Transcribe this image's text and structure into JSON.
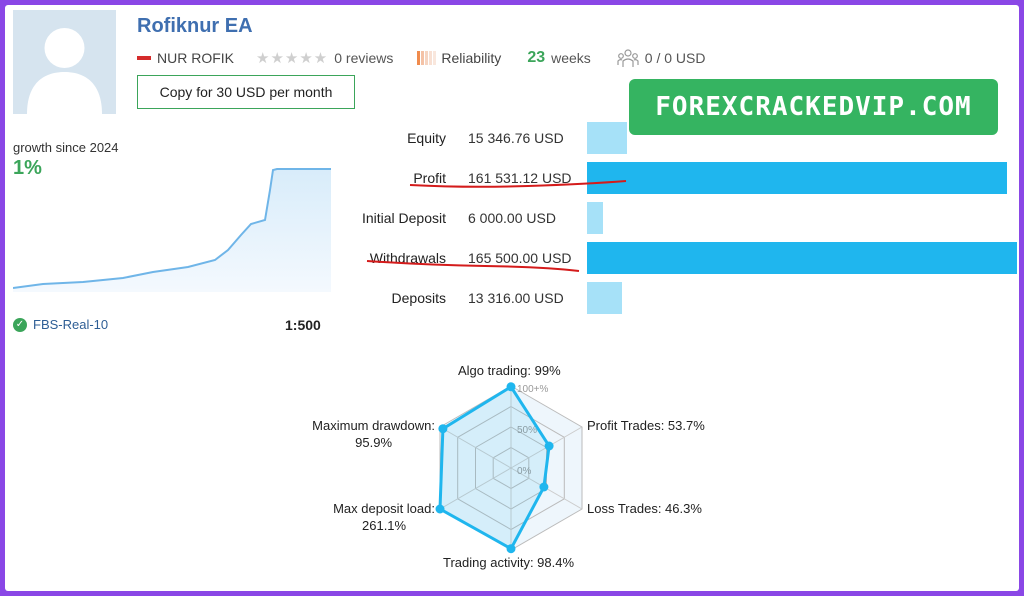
{
  "profile": {
    "name": "Rofiknur EA",
    "author": "NUR ROFIK",
    "reviews": "0 reviews",
    "reliability_label": "Reliability",
    "weeks_value": "23",
    "weeks_label": "weeks",
    "subscribers": "0 / 0 USD",
    "copy_button": "Copy for 30 USD per month",
    "watermark": "FOREXCRACKEDVIP.COM",
    "stars_rating": 0
  },
  "growth": {
    "label": "growth since 2024",
    "value": "1%",
    "server": "FBS-Real-10",
    "leverage": "1:500"
  },
  "stats": [
    {
      "label": "Equity",
      "value": "15 346.76 USD",
      "amount": 15346.76
    },
    {
      "label": "Profit",
      "value": "161 531.12 USD",
      "amount": 161531.12
    },
    {
      "label": "Initial Deposit",
      "value": "6 000.00 USD",
      "amount": 6000.0
    },
    {
      "label": "Withdrawals",
      "value": "165 500.00 USD",
      "amount": 165500.0
    },
    {
      "label": "Deposits",
      "value": "13 316.00 USD",
      "amount": 13316.0
    }
  ],
  "radar": {
    "axes": [
      {
        "label": "Algo trading: 99%",
        "value": 99
      },
      {
        "label": "Profit Trades: 53.7%",
        "value": 53.7
      },
      {
        "label": "Loss Trades: 46.3%",
        "value": 46.3
      },
      {
        "label": "Trading activity: 98.4%",
        "value": 98.4
      },
      {
        "label": "Max deposit load:",
        "label2": "261.1%",
        "value": 100
      },
      {
        "label": "Maximum drawdown:",
        "label2": "95.9%",
        "value": 95.9
      }
    ],
    "ticks": [
      "100+%",
      "50%",
      "0%"
    ]
  },
  "colors": {
    "accent_blue": "#1fb6ee",
    "light_blue": "#a6e1f8",
    "green": "#3ba55a",
    "watermark_bg": "#35b461",
    "frame": "#8a47e6",
    "underline_red": "#d41b1b"
  }
}
